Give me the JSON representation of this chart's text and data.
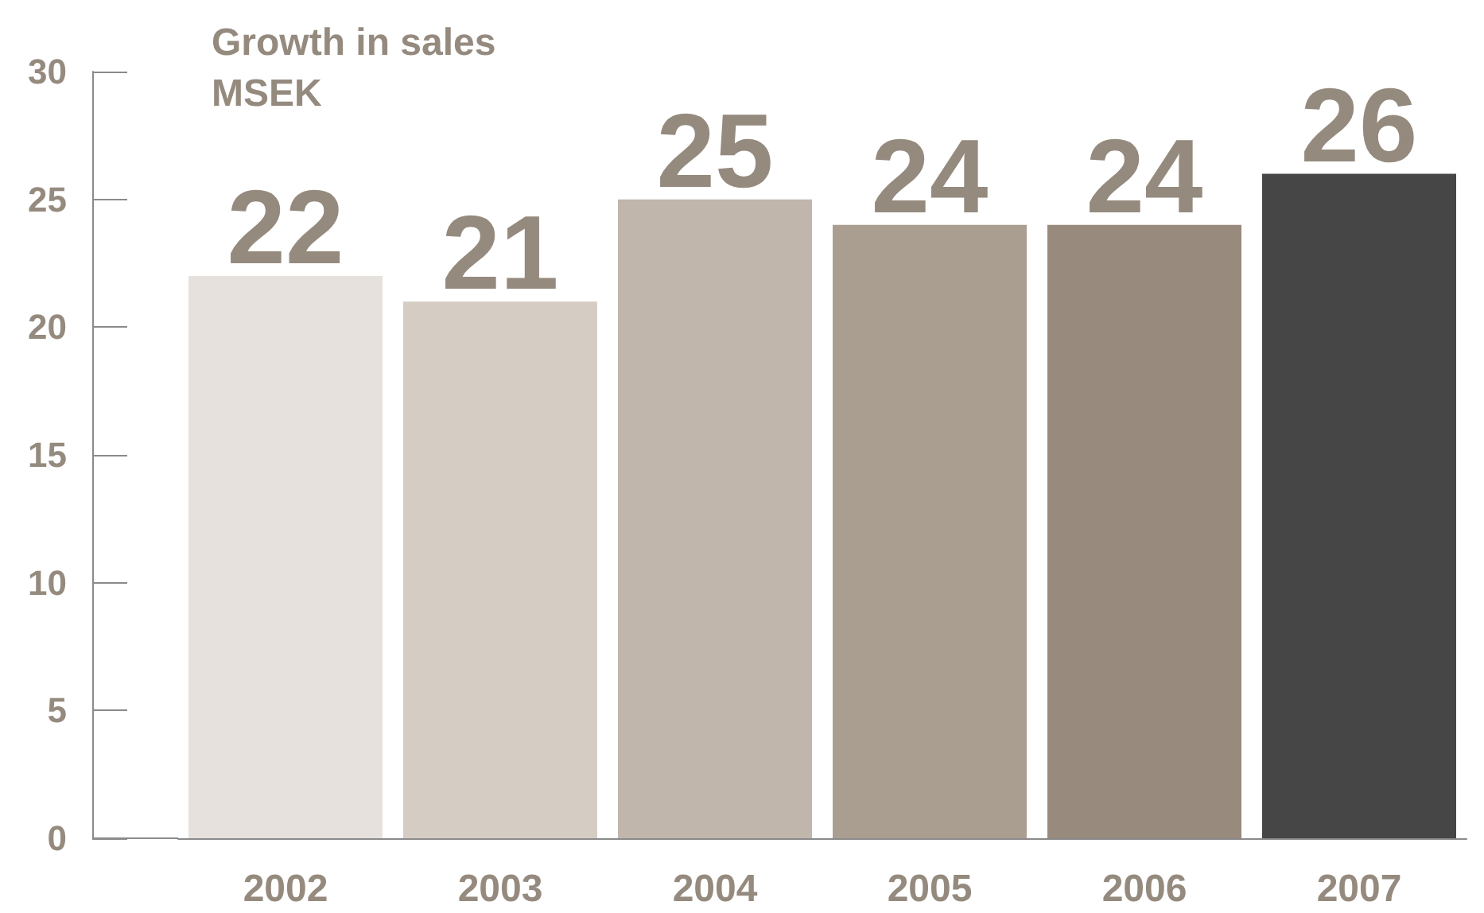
{
  "chart_data": {
    "type": "bar",
    "title": "Growth in sales",
    "ylabel": "MSEK",
    "categories": [
      "2002",
      "2003",
      "2004",
      "2005",
      "2006",
      "2007"
    ],
    "values": [
      22,
      21,
      25,
      24,
      24,
      26
    ],
    "colors": [
      "#e6e1dc",
      "#d5cdc4",
      "#c0b6ab",
      "#aa9e90",
      "#988a7c",
      "#464646"
    ],
    "ylim": [
      0,
      30
    ],
    "yticks": [
      0,
      5,
      10,
      15,
      20,
      25,
      30
    ],
    "data_labels": true
  }
}
